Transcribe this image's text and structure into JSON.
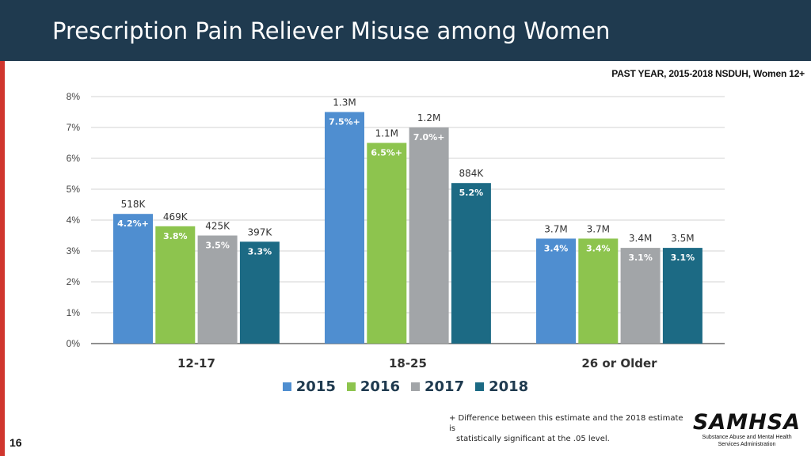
{
  "header": {
    "title": "Prescription Pain Reliever Misuse among Women"
  },
  "subtitle": "PAST YEAR, 2015-2018 NSDUH, Women 12+",
  "colors": {
    "2015": "#4f8ed0",
    "2016": "#8dc44e",
    "2017": "#a2a5a8",
    "2018": "#1c6a84",
    "header": "#1f3a4f",
    "stripe": "#d0362e"
  },
  "chart_data": {
    "type": "bar",
    "categories": [
      "12-17",
      "18-25",
      "26 or Older"
    ],
    "series": [
      {
        "name": "2015",
        "values": [
          4.2,
          7.5,
          3.4
        ],
        "labels": [
          "4.2%+",
          "7.5%+",
          "3.4%"
        ],
        "counts": [
          "518K",
          "1.3M",
          "3.7M"
        ]
      },
      {
        "name": "2016",
        "values": [
          3.8,
          6.5,
          3.4
        ],
        "labels": [
          "3.8%",
          "6.5%+",
          "3.4%"
        ],
        "counts": [
          "469K",
          "1.1M",
          "3.7M"
        ]
      },
      {
        "name": "2017",
        "values": [
          3.5,
          7.0,
          3.1
        ],
        "labels": [
          "3.5%",
          "7.0%+",
          "3.1%"
        ],
        "counts": [
          "425K",
          "1.2M",
          "3.4M"
        ]
      },
      {
        "name": "2018",
        "values": [
          3.3,
          5.2,
          3.1
        ],
        "labels": [
          "3.3%",
          "5.2%",
          "3.1%"
        ],
        "counts": [
          "397K",
          "884K",
          "3.5M"
        ]
      }
    ],
    "yticks": [
      "0%",
      "1%",
      "2%",
      "3%",
      "4%",
      "5%",
      "6%",
      "7%",
      "8%"
    ],
    "ylim": [
      0,
      8
    ],
    "grid": true,
    "legend": "bottom",
    "title": "Prescription Pain Reliever Misuse among Women"
  },
  "legend": [
    "2015",
    "2016",
    "2017",
    "2018"
  ],
  "footnote": {
    "line1": "+ Difference between this estimate and the 2018 estimate is",
    "line2": "statistically significant at the .05 level."
  },
  "page_number": "16",
  "logo": {
    "word": "SAMHSA",
    "line1": "Substance Abuse and Mental Health",
    "line2": "Services Administration"
  }
}
